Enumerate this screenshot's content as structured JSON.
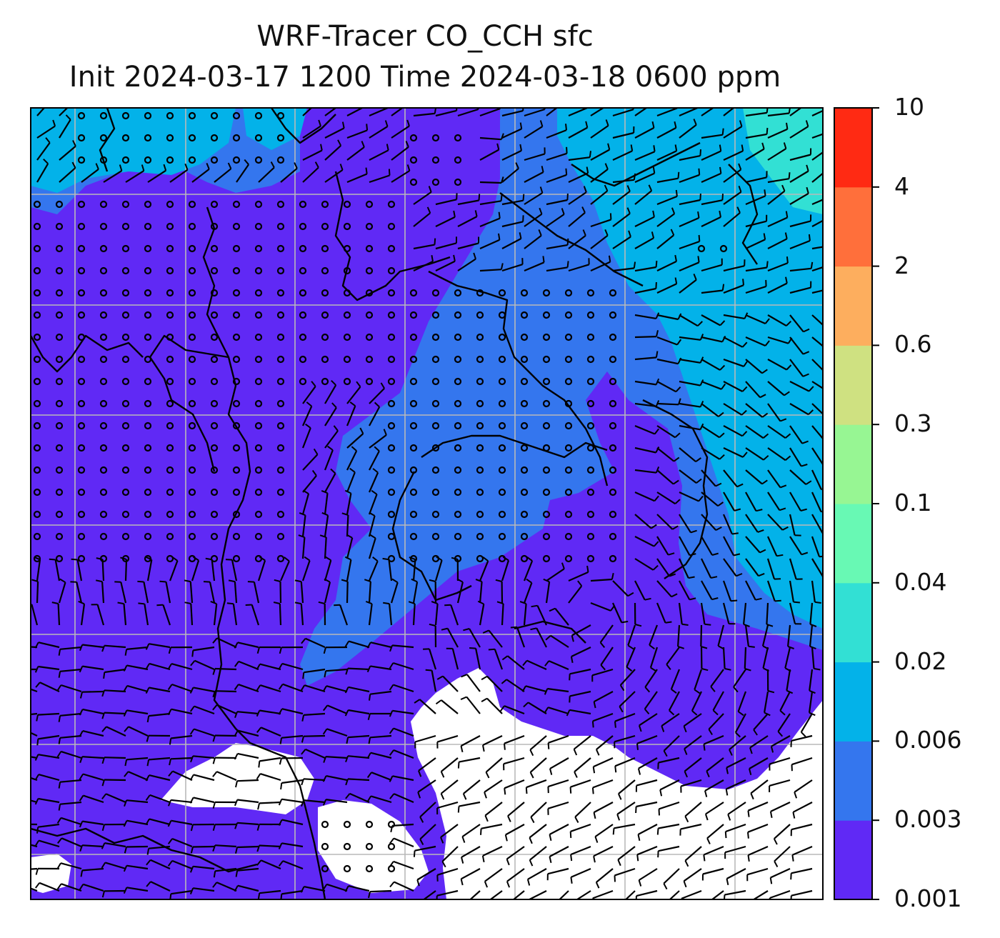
{
  "title": {
    "line1": "WRF-Tracer CO_CCH sfc",
    "line2": "Init 2024-03-17 1200 Time 2024-03-18 0600 ppm"
  },
  "colorbar": {
    "levels": [
      "0.001",
      "0.003",
      "0.006",
      "0.02",
      "0.04",
      "0.1",
      "0.3",
      "0.6",
      "2",
      "4",
      "10"
    ],
    "colors": [
      "#6029f5",
      "#3476ee",
      "#03b2e9",
      "#32e0d4",
      "#68f9b4",
      "#97f693",
      "#cfe181",
      "#fdae5e",
      "#ff6f3b",
      "#ff2a13"
    ]
  },
  "map": {
    "background": "#ffffff",
    "grid_color": "#b9b9b9",
    "barb_color": "#000000"
  }
}
